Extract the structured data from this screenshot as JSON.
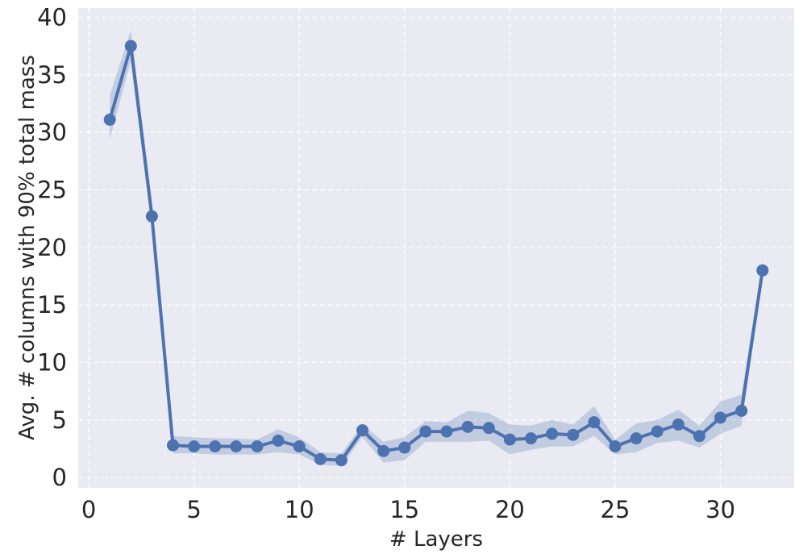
{
  "chart_data": {
    "type": "line",
    "xlabel": "# Layers",
    "ylabel": "Avg. # columns with 90% total mass",
    "xlim": [
      -0.5,
      33.5
    ],
    "ylim": [
      -0.9,
      40.8
    ],
    "xticks": [
      0,
      5,
      10,
      15,
      20,
      25,
      30
    ],
    "yticks": [
      0,
      5,
      10,
      15,
      20,
      25,
      30,
      35,
      40
    ],
    "grid": true,
    "legend": "none",
    "colors": {
      "background": "#eaeaf2",
      "line": "#4c72b0",
      "band": "#4c72b0"
    },
    "series": [
      {
        "x": [
          1,
          2,
          3,
          4,
          5,
          6,
          7,
          8,
          9,
          10,
          11,
          12,
          13,
          14,
          15,
          16,
          17,
          18,
          19,
          20,
          21,
          22,
          23,
          24,
          25,
          26,
          27,
          28,
          29,
          30,
          31,
          32
        ],
        "y": [
          31.1,
          37.5,
          22.7,
          2.8,
          2.7,
          2.7,
          2.7,
          2.7,
          3.2,
          2.7,
          1.6,
          1.5,
          4.1,
          2.3,
          2.6,
          4.0,
          4.0,
          4.4,
          4.3,
          3.3,
          3.4,
          3.8,
          3.7,
          4.8,
          2.7,
          3.4,
          4.0,
          4.6,
          3.6,
          5.2,
          5.8,
          18.0
        ],
        "lower": [
          29.4,
          36.2,
          21.8,
          2.1,
          2.1,
          2.0,
          2.0,
          2.0,
          2.2,
          2.0,
          1.1,
          1.0,
          3.5,
          1.3,
          1.5,
          3.1,
          3.1,
          3.1,
          3.2,
          2.0,
          2.4,
          2.7,
          2.7,
          3.6,
          2.0,
          2.2,
          3.0,
          3.2,
          2.6,
          3.8,
          4.5,
          17.3
        ],
        "upper": [
          33.2,
          38.9,
          24.1,
          3.6,
          3.5,
          3.4,
          3.4,
          3.3,
          4.2,
          3.5,
          2.2,
          2.1,
          4.6,
          3.1,
          3.5,
          4.9,
          4.8,
          5.8,
          5.6,
          4.6,
          4.5,
          5.0,
          4.6,
          6.2,
          3.3,
          4.7,
          5.0,
          5.9,
          4.5,
          6.6,
          7.2,
          18.8
        ]
      }
    ]
  }
}
